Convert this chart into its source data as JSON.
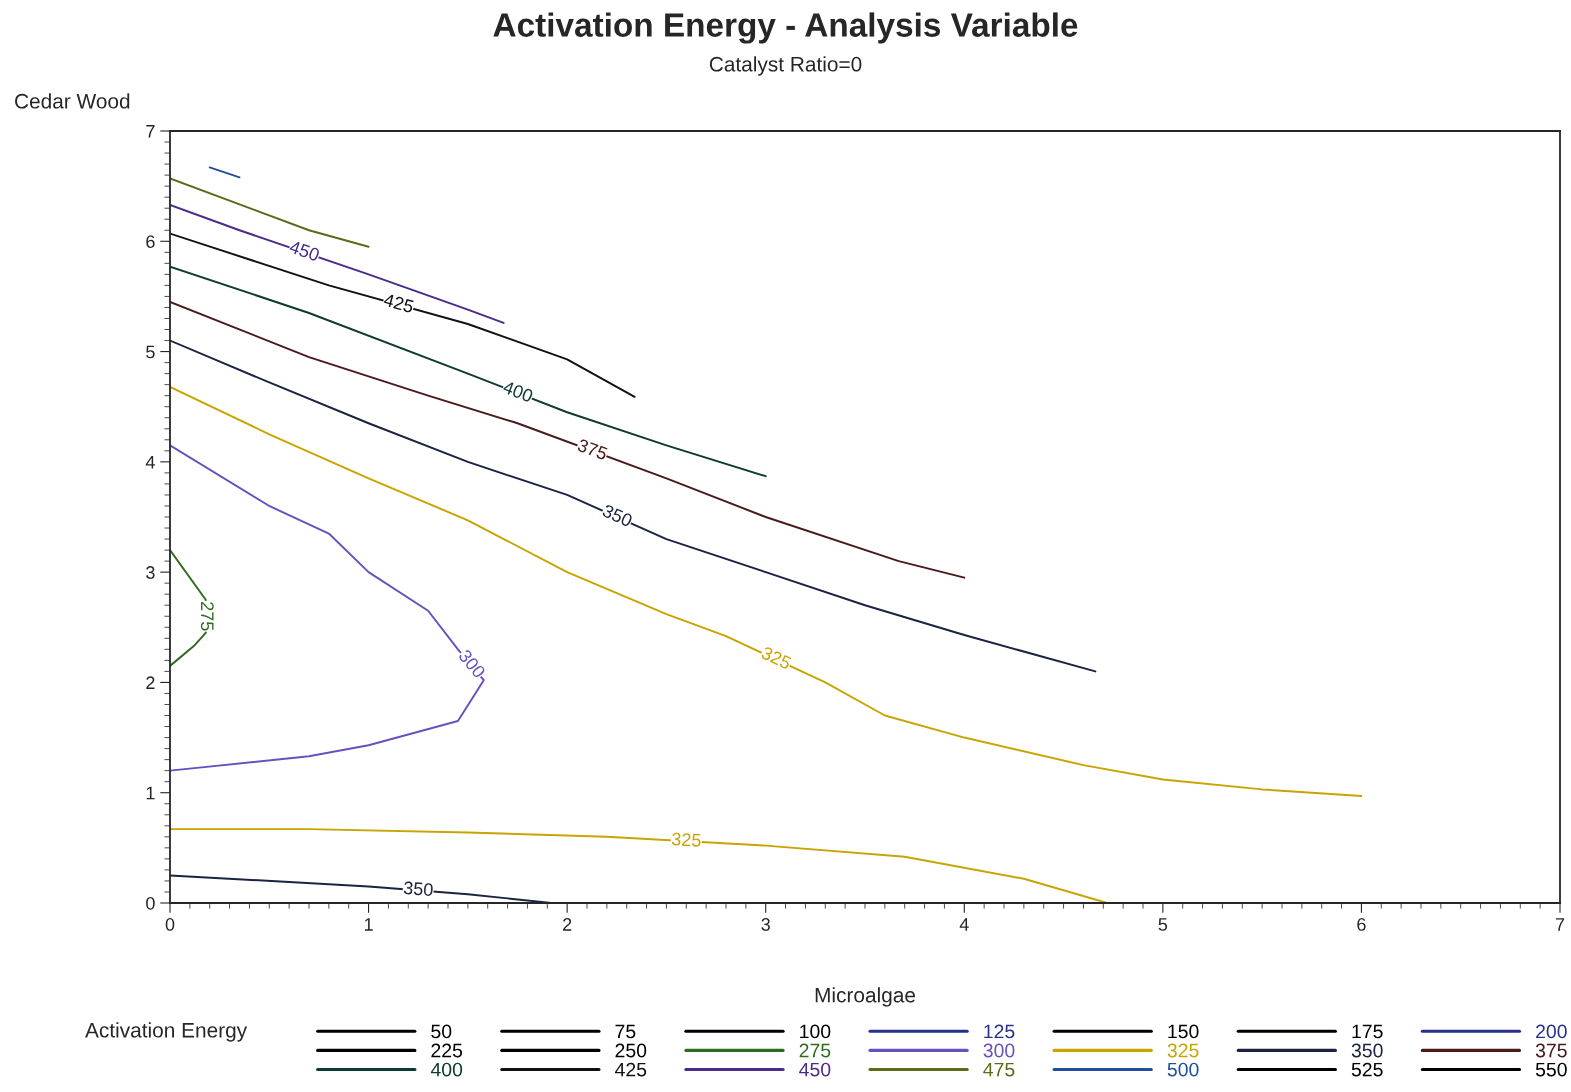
{
  "chart_data": {
    "type": "line",
    "title": "Activation Energy - Analysis Variable",
    "subtitle": "Catalyst Ratio=0",
    "xlabel": "Microalgae",
    "ylabel": "Cedar Wood",
    "legend_title": "Activation Energy",
    "xlim": [
      0,
      7
    ],
    "ylim": [
      0,
      7
    ],
    "xticks": [
      0,
      1,
      2,
      3,
      4,
      5,
      6,
      7
    ],
    "yticks": [
      0,
      1,
      2,
      3,
      4,
      5,
      6,
      7
    ],
    "grid": false,
    "legend": "bottom",
    "marker": "none",
    "line_style": "solid",
    "series": [
      {
        "name": "50",
        "color": "#000000"
      },
      {
        "name": "75",
        "color": "#000000"
      },
      {
        "name": "100",
        "color": "#000000"
      },
      {
        "name": "125",
        "color": "#25308a"
      },
      {
        "name": "150",
        "color": "#000000"
      },
      {
        "name": "175",
        "color": "#000000"
      },
      {
        "name": "200",
        "color": "#25308a"
      },
      {
        "name": "225",
        "color": "#000000"
      },
      {
        "name": "250",
        "color": "#000000"
      },
      {
        "name": "275",
        "color": "#2e6b1e",
        "x": [
          0,
          0.18,
          0.18,
          0.12,
          0
        ],
        "values": [
          3.2,
          2.75,
          2.45,
          2.33,
          2.15
        ]
      },
      {
        "name": "300",
        "color": "#6a4fbf",
        "x": [
          0,
          0.7,
          1.0,
          1.45,
          1.58,
          1.45,
          1.3,
          1.0,
          0.8,
          0.5,
          0
        ],
        "values": [
          1.2,
          1.33,
          1.43,
          1.65,
          2.02,
          2.3,
          2.65,
          3.0,
          3.35,
          3.6,
          4.15
        ]
      },
      {
        "name": "325",
        "color": "#c8a400",
        "x": [
          0,
          0.5,
          1.0,
          1.5,
          2.0,
          2.5,
          2.8,
          3.3,
          3.6,
          4.0,
          4.6,
          5.0,
          5.5,
          6.0
        ],
        "values": [
          4.68,
          4.25,
          3.85,
          3.47,
          3.0,
          2.62,
          2.42,
          2.0,
          1.7,
          1.5,
          1.25,
          1.12,
          1.03,
          0.97
        ]
      },
      {
        "name": "325",
        "color": "#c8a400",
        "x": [
          0,
          0.7,
          1.5,
          2.2,
          3.0,
          3.7,
          4.3,
          4.72
        ],
        "values": [
          0.67,
          0.67,
          0.64,
          0.6,
          0.52,
          0.42,
          0.22,
          0
        ]
      },
      {
        "name": "350",
        "color": "#1a2340",
        "x": [
          0,
          0.5,
          1.0,
          1.5,
          2.0,
          2.5,
          3.0,
          3.5,
          4.0,
          4.66
        ],
        "values": [
          5.1,
          4.72,
          4.35,
          4.0,
          3.7,
          3.3,
          3.0,
          2.7,
          2.43,
          2.1
        ]
      },
      {
        "name": "350",
        "color": "#1a2340",
        "x": [
          0,
          1.0,
          1.5,
          1.92
        ],
        "values": [
          0.25,
          0.15,
          0.08,
          0
        ]
      },
      {
        "name": "375",
        "color": "#4a1a1a",
        "x": [
          0,
          0.7,
          1.3,
          1.75,
          2.5,
          3.0,
          3.67,
          4.0
        ],
        "values": [
          5.45,
          4.95,
          4.6,
          4.35,
          3.85,
          3.5,
          3.1,
          2.95
        ]
      },
      {
        "name": "400",
        "color": "#0f3a33",
        "x": [
          0,
          0.7,
          1.5,
          2.0,
          2.5,
          3.0
        ],
        "values": [
          5.77,
          5.35,
          4.8,
          4.45,
          4.15,
          3.87
        ]
      },
      {
        "name": "425",
        "color": "#111111",
        "x": [
          0,
          0.8,
          1.5,
          2.0,
          2.34
        ],
        "values": [
          6.07,
          5.6,
          5.25,
          4.93,
          4.59
        ]
      },
      {
        "name": "450",
        "color": "#4b2a8c",
        "x": [
          0,
          0.35,
          1.0,
          1.5,
          1.68
        ],
        "values": [
          6.33,
          6.1,
          5.7,
          5.38,
          5.26
        ]
      },
      {
        "name": "475",
        "color": "#5a6b1a",
        "x": [
          0,
          0.7,
          1.0
        ],
        "values": [
          6.57,
          6.1,
          5.95
        ]
      },
      {
        "name": "500",
        "color": "#1f4f9a",
        "x": [
          0.2,
          0.35
        ],
        "values": [
          6.67,
          6.58
        ]
      },
      {
        "name": "525",
        "color": "#000000"
      },
      {
        "name": "550",
        "color": "#000000"
      }
    ]
  }
}
